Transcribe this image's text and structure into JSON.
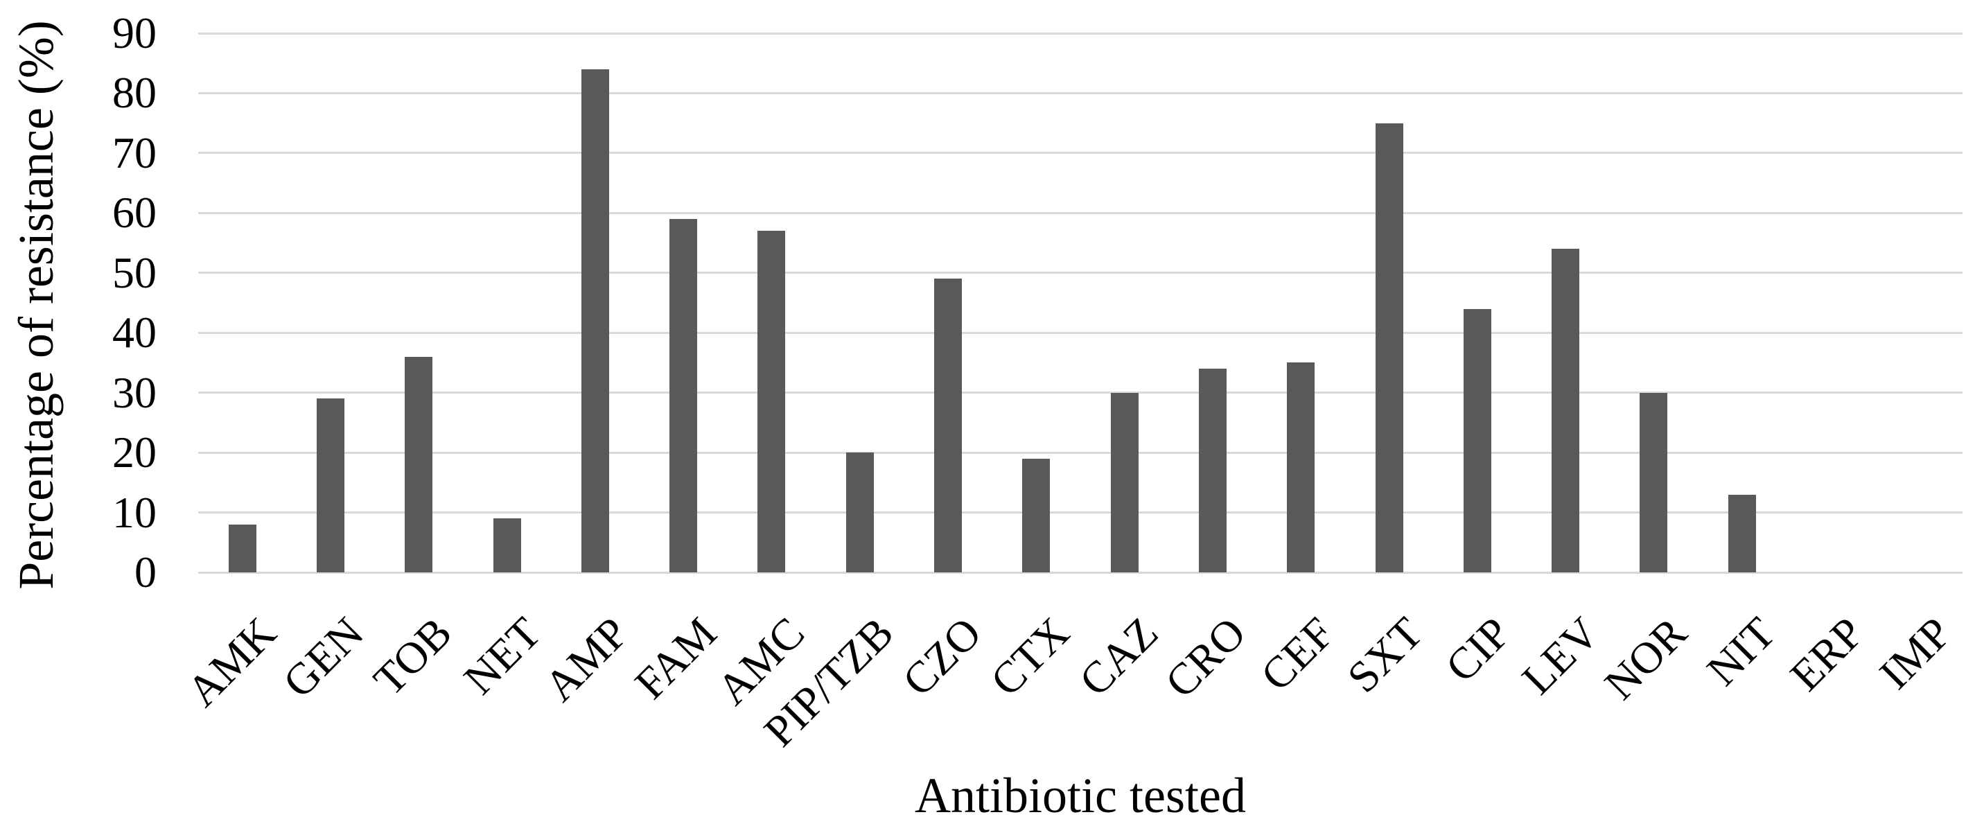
{
  "chart_data": {
    "type": "bar",
    "title": "",
    "xlabel": "Antibiotic tested",
    "ylabel": "Percentage of resistance (%)",
    "categories": [
      "AMK",
      "GEN",
      "TOB",
      "NET",
      "AMP",
      "FAM",
      "AMC",
      "PIP/TZB",
      "CZO",
      "CTX",
      "CAZ",
      "CRO",
      "CEF",
      "SXT",
      "CIP",
      "LEV",
      "NOR",
      "NIT",
      "ERP",
      "IMP"
    ],
    "values": [
      8,
      29,
      36,
      9,
      84,
      59,
      57,
      20,
      49,
      19,
      30,
      34,
      35,
      75,
      44,
      54,
      30,
      13,
      0,
      0
    ],
    "y_ticks": [
      0,
      10,
      20,
      30,
      40,
      50,
      60,
      70,
      80,
      90
    ],
    "ylim": [
      0,
      90
    ],
    "grid": "horizontal",
    "legend": "none",
    "bar_color": "#595959",
    "gridline_color": "#d9d9d9",
    "text_color": "#000000",
    "background_color": "#ffffff"
  }
}
